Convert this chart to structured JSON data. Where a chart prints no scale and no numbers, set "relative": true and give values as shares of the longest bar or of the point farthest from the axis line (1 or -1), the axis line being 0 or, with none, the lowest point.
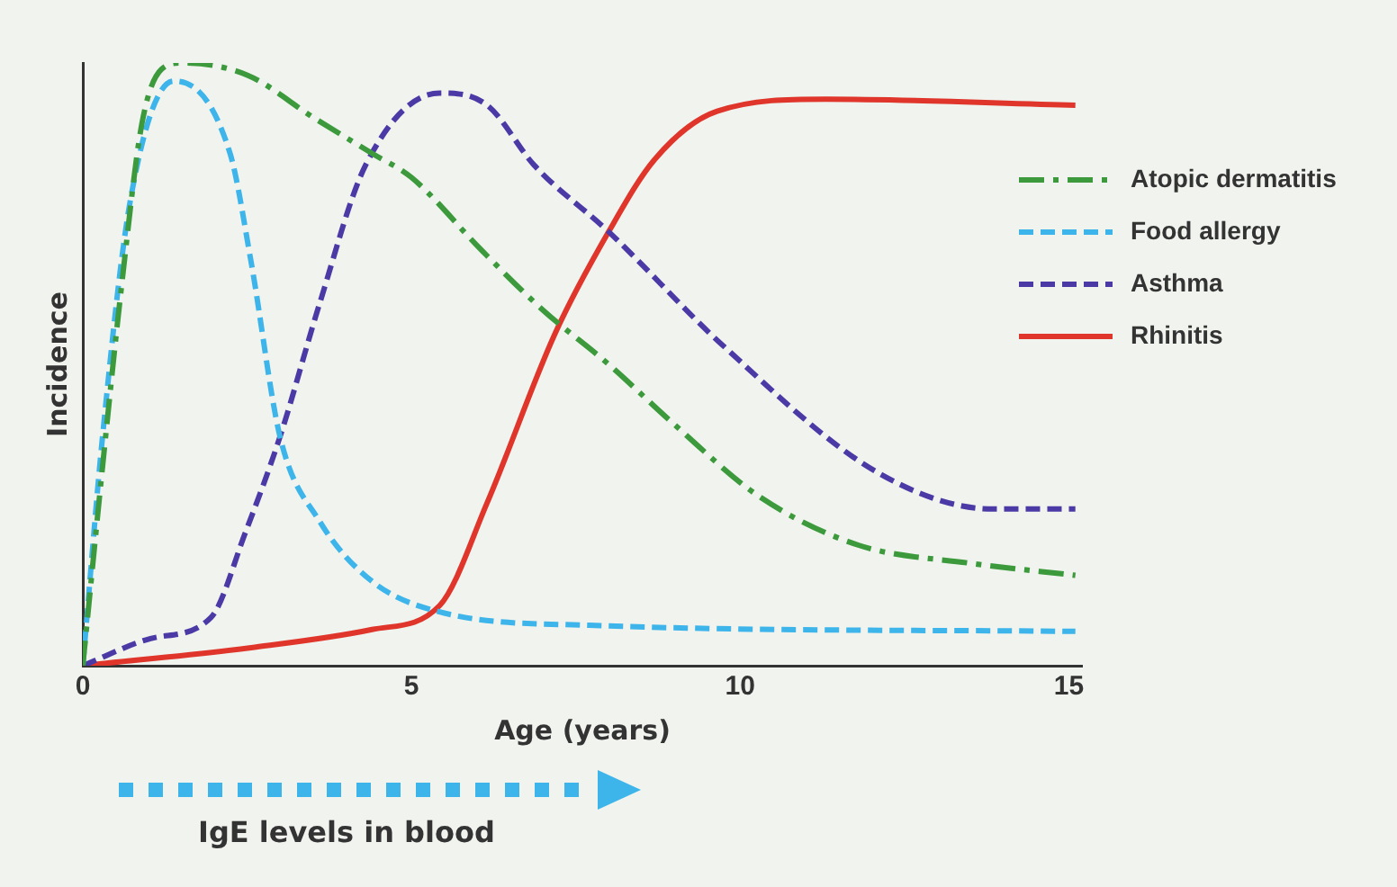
{
  "chart_data": {
    "type": "line",
    "xlabel": "Age (years)",
    "ylabel": "Incidence",
    "relative": true,
    "xlim": [
      0,
      15.2
    ],
    "xticks": [
      0,
      5,
      10,
      15
    ],
    "grid": false,
    "legend": "right",
    "marker": "none",
    "annotations": [
      "IgE levels in blood"
    ],
    "series": [
      {
        "name": "Atopic dermatitis",
        "color": "#3c9a3c",
        "line_style": "dashdot",
        "x": [
          0,
          0.3,
          0.6,
          0.9,
          1.2,
          1.5,
          2.5,
          3.5,
          4.4,
          5,
          6.06,
          7,
          8,
          9,
          10.3,
          11.8,
          13.5,
          15.1
        ],
        "values": [
          0,
          0.33,
          0.64,
          0.9,
          0.99,
          1,
          0.98,
          0.91,
          0.85,
          0.81,
          0.69,
          0.59,
          0.5,
          0.4,
          0.28,
          0.2,
          0.17,
          0.15
        ]
      },
      {
        "name": "Food allergy",
        "color": "#3db4ea",
        "line_style": "dashed",
        "x": [
          0,
          0.3,
          0.72,
          1.38,
          2.24,
          2.56,
          3.0,
          3.6,
          4.4,
          5.4,
          7.7,
          15.1
        ],
        "values": [
          0,
          0.38,
          0.77,
          0.97,
          0.85,
          0.67,
          0.38,
          0.24,
          0.14,
          0.09,
          0.067,
          0.057
        ]
      },
      {
        "name": "Asthma",
        "color": "#4b3aa6",
        "line_style": "dashed",
        "x": [
          0,
          1.03,
          1.95,
          2.47,
          3.0,
          3.6,
          4.3,
          5.43,
          6.15,
          6.87,
          8,
          9.75,
          12.1,
          13.85,
          15.1
        ],
        "values": [
          0,
          0.045,
          0.08,
          0.22,
          0.38,
          0.6,
          0.83,
          0.95,
          0.93,
          0.83,
          0.72,
          0.53,
          0.32,
          0.26,
          0.26
        ]
      },
      {
        "name": "Rhinitis",
        "color": "#e0352b",
        "line_style": "solid",
        "x": [
          0,
          2.56,
          4.4,
          5.43,
          6.15,
          7.18,
          8.0,
          8.7,
          9.65,
          11.3,
          15.1
        ],
        "values": [
          0,
          0.03,
          0.06,
          0.1,
          0.27,
          0.55,
          0.72,
          0.84,
          0.92,
          0.94,
          0.93
        ]
      }
    ]
  }
}
